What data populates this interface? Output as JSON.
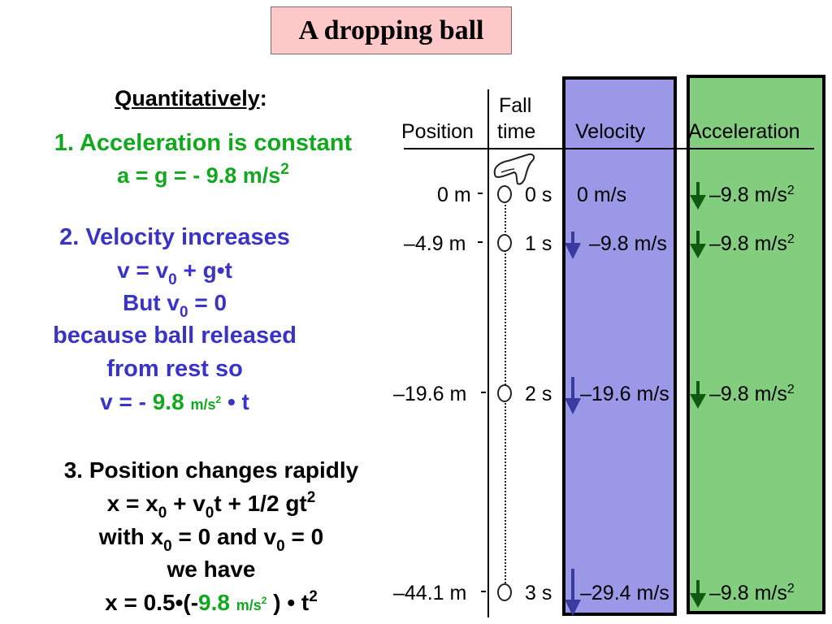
{
  "title": "A dropping ball",
  "left": {
    "heading": "Quantitatively",
    "heading_colon": ":",
    "s1_line1": "1. Acceleration is constant",
    "s1_line2": "a = g = - 9.8 m/s",
    "s1_line2_sup": "2",
    "s2_line1": "2. Velocity increases",
    "s2_line2_a": "v = v",
    "s2_line2_sub": "0",
    "s2_line2_b": " + g•t",
    "s2_line3_a": "But  v",
    "s2_line3_sub": "0",
    "s2_line3_b": " = 0",
    "s2_line4": "because ball released",
    "s2_line5": "from rest so",
    "s2_line6_a": "v = - ",
    "s2_line6_num": "9.8",
    "s2_line6_unit": "m/s",
    "s2_line6_unit_sup": "2",
    "s2_line6_b": " • t",
    "s3_line1": "3. Position changes rapidly",
    "s3_line2_a": "x = x",
    "s3_line2_sub1": "0",
    "s3_line2_b": " + v",
    "s3_line2_sub2": "0",
    "s3_line2_c": "t + 1/2 gt",
    "s3_line2_sup": "2",
    "s3_line3_a": "with x",
    "s3_line3_sub1": "0",
    "s3_line3_b": " = 0 and v",
    "s3_line3_sub2": "0",
    "s3_line3_c": " = 0",
    "s3_line4": "we have",
    "s3_line5_a": "x = 0.5•(-",
    "s3_line5_num": "9.8",
    "s3_line5_unit": "m/s",
    "s3_line5_unit_sup": "2",
    "s3_line5_b": " ) • t",
    "s3_line5_sup": "2"
  },
  "diagram": {
    "headers": {
      "position": "Position",
      "fall_line1": "Fall",
      "fall_line2": "time",
      "velocity": "Velocity",
      "acceleration": "Acceleration"
    },
    "rows": [
      {
        "position": "0 m",
        "time": "0 s",
        "velocity": "0 m/s",
        "acceleration": "–9.8 m/s",
        "acc_sup": "2"
      },
      {
        "position": "–4.9 m",
        "time": "1 s",
        "velocity": "–9.8 m/s",
        "acceleration": "–9.8 m/s",
        "acc_sup": "2"
      },
      {
        "position": "–19.6 m",
        "time": "2 s",
        "velocity": "–19.6 m/s",
        "acceleration": "–9.8 m/s",
        "acc_sup": "2"
      },
      {
        "position": "–44.1 m",
        "time": "3 s",
        "velocity": "–29.4 m/s",
        "acceleration": "–9.8 m/s",
        "acc_sup": "2"
      }
    ],
    "colors": {
      "velocity_panel": "#9b99e7",
      "acceleration_panel": "#83cd7f",
      "title_box": "#fcc8c8",
      "velocity_arrow": "#3a3aa0",
      "acceleration_arrow": "#0d5a10"
    },
    "icons": [
      "hand-icon",
      "ball-icon",
      "down-arrow-icon"
    ]
  }
}
